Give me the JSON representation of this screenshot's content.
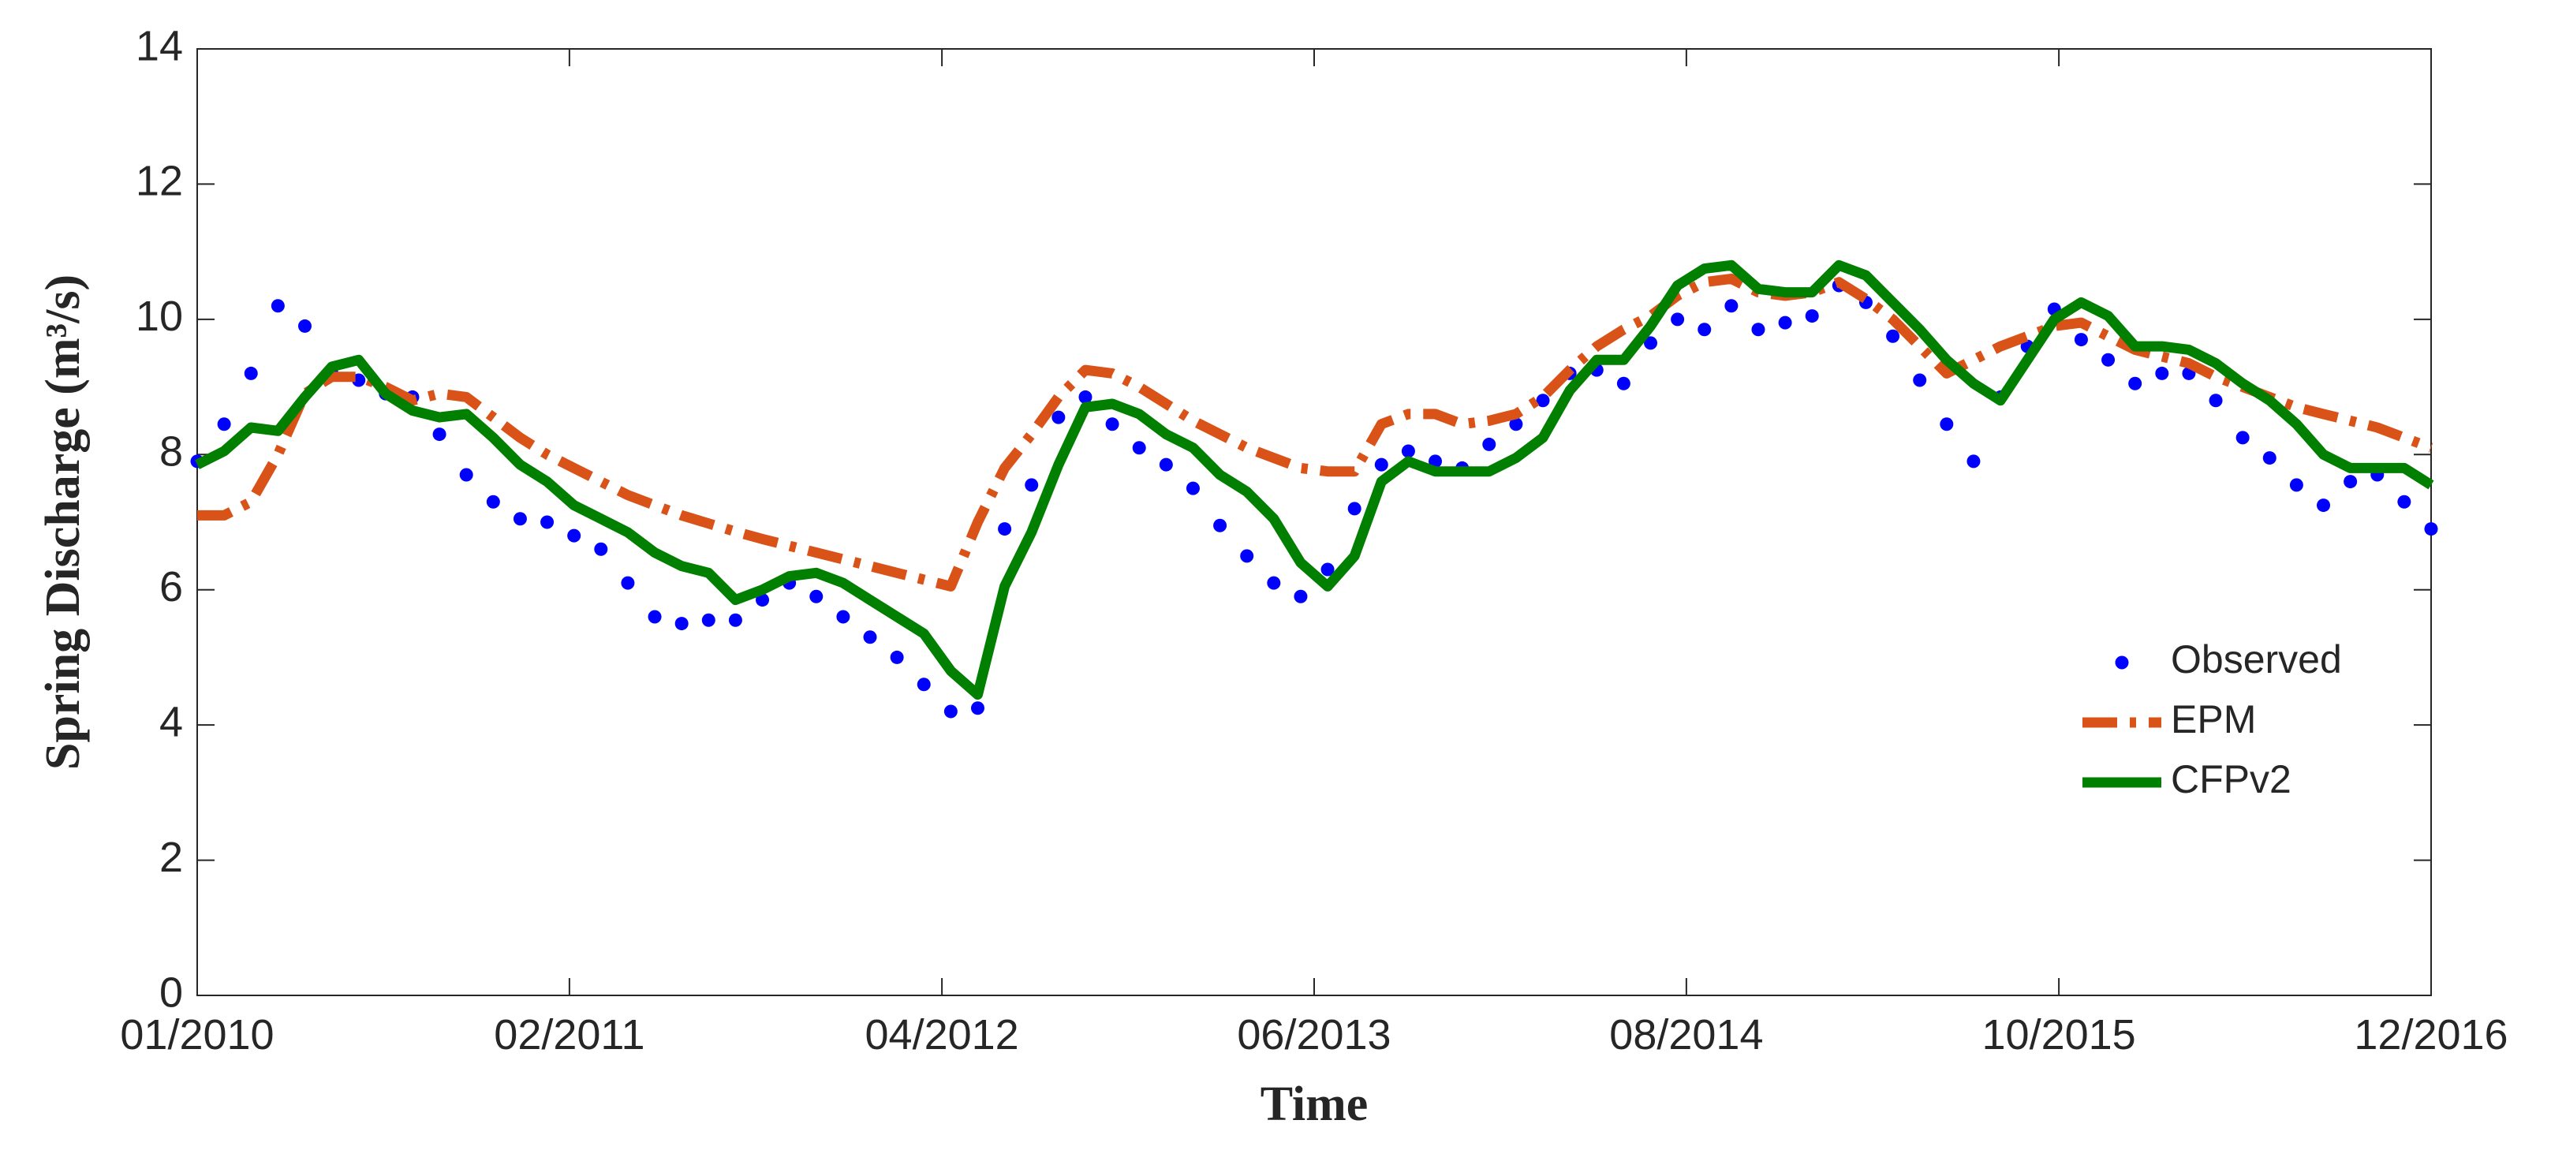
{
  "chart_data": {
    "type": "line",
    "xlabel": "Time",
    "ylabel": "Spring Discharge (m³/s)",
    "x": [
      0,
      1,
      2,
      3,
      4,
      5,
      6,
      7,
      8,
      9,
      10,
      11,
      12,
      13,
      14,
      15,
      16,
      17,
      18,
      19,
      20,
      21,
      22,
      23,
      24,
      25,
      26,
      27,
      28,
      29,
      30,
      31,
      32,
      33,
      34,
      35,
      36,
      37,
      38,
      39,
      40,
      41,
      42,
      43,
      44,
      45,
      46,
      47,
      48,
      49,
      50,
      51,
      52,
      53,
      54,
      55,
      56,
      57,
      58,
      59,
      60,
      61,
      62,
      63,
      64,
      65,
      66,
      67,
      68,
      69,
      70,
      71,
      72,
      73,
      74,
      75,
      76,
      77,
      78,
      79,
      80,
      81,
      82,
      83
    ],
    "xlim": [
      0,
      83
    ],
    "xticks": [
      {
        "value": 0,
        "label": "01/2010"
      },
      {
        "value": 13.83,
        "label": "02/2011"
      },
      {
        "value": 27.67,
        "label": "04/2012"
      },
      {
        "value": 41.5,
        "label": "06/2013"
      },
      {
        "value": 55.33,
        "label": "08/2014"
      },
      {
        "value": 69.17,
        "label": "10/2015"
      },
      {
        "value": 83,
        "label": "12/2016"
      }
    ],
    "ylim": [
      0,
      14
    ],
    "yticks": [
      0,
      2,
      4,
      6,
      8,
      10,
      12,
      14
    ],
    "legend": "lower right",
    "series": [
      {
        "name": "Observed",
        "color": "#0000ff",
        "mode": "markers",
        "values": [
          7.9,
          8.45,
          9.2,
          10.2,
          9.9,
          9.2,
          9.1,
          8.9,
          8.85,
          8.3,
          7.7,
          7.3,
          7.05,
          7.0,
          6.8,
          6.6,
          6.1,
          5.6,
          5.5,
          5.55,
          5.55,
          5.85,
          6.1,
          5.9,
          5.6,
          5.3,
          5.0,
          4.6,
          4.2,
          4.25,
          6.9,
          7.55,
          8.55,
          8.85,
          8.45,
          8.1,
          7.85,
          7.5,
          6.95,
          6.5,
          6.1,
          5.9,
          6.3,
          7.2,
          7.85,
          8.05,
          7.9,
          7.8,
          8.15,
          8.45,
          8.8,
          9.2,
          9.25,
          9.05,
          9.65,
          10.0,
          9.85,
          10.2,
          9.85,
          9.95,
          10.05,
          10.5,
          10.25,
          9.75,
          9.1,
          8.45,
          7.9,
          8.85,
          9.6,
          10.15,
          9.7,
          9.4,
          9.05,
          9.2,
          9.2,
          8.8,
          8.25,
          7.95,
          7.55,
          7.25,
          7.6,
          7.7,
          7.3,
          6.9
        ]
      },
      {
        "name": "EPM",
        "color": "#d95319",
        "mode": "dashdot",
        "values": [
          7.1,
          7.1,
          7.3,
          8.0,
          8.9,
          9.15,
          9.15,
          9.0,
          8.8,
          8.9,
          8.85,
          8.55,
          8.25,
          8.0,
          7.8,
          7.6,
          7.4,
          7.25,
          7.1,
          6.98,
          6.86,
          6.75,
          6.65,
          6.55,
          6.45,
          6.35,
          6.25,
          6.15,
          6.05,
          7.0,
          7.8,
          8.3,
          8.85,
          9.25,
          9.2,
          9.0,
          8.75,
          8.5,
          8.3,
          8.1,
          7.95,
          7.8,
          7.75,
          7.75,
          8.45,
          8.6,
          8.6,
          8.45,
          8.5,
          8.6,
          8.85,
          9.25,
          9.6,
          9.85,
          10.05,
          10.35,
          10.55,
          10.6,
          10.4,
          10.35,
          10.4,
          10.55,
          10.3,
          10.0,
          9.6,
          9.2,
          9.4,
          9.6,
          9.75,
          9.9,
          9.95,
          9.75,
          9.55,
          9.45,
          9.35,
          9.15,
          9.0,
          8.85,
          8.7,
          8.6,
          8.5,
          8.4,
          8.25,
          8.1
        ]
      },
      {
        "name": "CFPv2",
        "color": "#007f00",
        "mode": "solid",
        "values": [
          7.85,
          8.05,
          8.4,
          8.35,
          8.85,
          9.3,
          9.4,
          8.9,
          8.65,
          8.55,
          8.6,
          8.25,
          7.85,
          7.6,
          7.25,
          7.05,
          6.85,
          6.55,
          6.35,
          6.25,
          5.85,
          6.0,
          6.2,
          6.25,
          6.1,
          5.85,
          5.6,
          5.35,
          4.8,
          4.45,
          6.05,
          6.85,
          7.85,
          8.7,
          8.75,
          8.6,
          8.3,
          8.1,
          7.7,
          7.45,
          7.05,
          6.4,
          6.05,
          6.5,
          7.6,
          7.9,
          7.75,
          7.75,
          7.75,
          7.95,
          8.25,
          8.95,
          9.4,
          9.4,
          9.9,
          10.5,
          10.75,
          10.8,
          10.45,
          10.4,
          10.4,
          10.8,
          10.65,
          10.25,
          9.85,
          9.4,
          9.05,
          8.8,
          9.4,
          10.0,
          10.25,
          10.05,
          9.6,
          9.6,
          9.55,
          9.35,
          9.05,
          8.8,
          8.45,
          8.0,
          7.8,
          7.8,
          7.8,
          7.55
        ]
      }
    ]
  }
}
